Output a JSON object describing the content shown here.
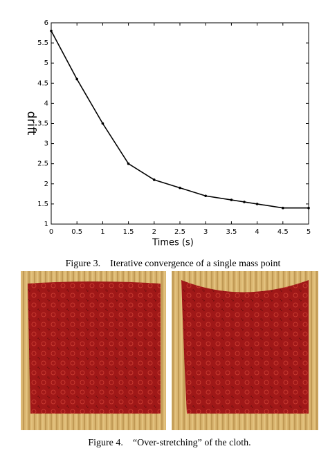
{
  "chart_data": {
    "type": "line",
    "x_label": "Times (s)",
    "y_label": "drift",
    "x": [
      0,
      0.5,
      1,
      1.5,
      2,
      2.5,
      3,
      3.5,
      3.75,
      4,
      4.5,
      5
    ],
    "series": [
      {
        "color": "#000000",
        "values": [
          5.8,
          4.6,
          3.5,
          2.5,
          2.1,
          1.9,
          1.7,
          1.6,
          1.55,
          1.5,
          1.4,
          1.4
        ]
      }
    ],
    "xlim": [
      0,
      5
    ],
    "xticks": [
      0,
      0.5,
      1,
      1.5,
      2,
      2.5,
      3,
      3.5,
      4,
      4.5,
      5
    ],
    "ylim": [
      1,
      6
    ],
    "yticks": [
      1,
      1.5,
      2,
      2.5,
      3,
      3.5,
      4,
      4.5,
      5,
      5.5,
      6
    ]
  },
  "figure3_caption": "Figure 3.    Iterative convergence of a single mass point",
  "figure4_caption": "Figure 4.    “Over-stretching” of the cloth."
}
